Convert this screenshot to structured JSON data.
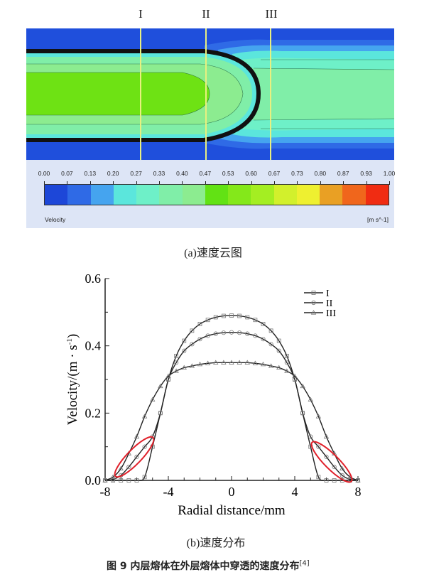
{
  "contour": {
    "section_labels": [
      "I",
      "II",
      "III"
    ],
    "colorbar": {
      "ticks": [
        "0.00",
        "0.07",
        "0.13",
        "0.20",
        "0.27",
        "0.33",
        "0.40",
        "0.47",
        "0.53",
        "0.60",
        "0.67",
        "0.73",
        "0.80",
        "0.87",
        "0.93",
        "1.00"
      ],
      "colors": [
        "#1d47d8",
        "#2f6ae6",
        "#45a4ef",
        "#5be6dc",
        "#6ef0c8",
        "#80eea8",
        "#8cec90",
        "#62e214",
        "#84e81a",
        "#a4ee22",
        "#d2f02c",
        "#eef030",
        "#e9a024",
        "#f0661c",
        "#f02c12"
      ],
      "label": "Velocity",
      "unit": "[m s^-1]"
    },
    "caption": "(a)速度云图"
  },
  "chart_data": {
    "type": "line",
    "xlabel": "Radial distance/mm",
    "ylabel": "Velocity/(m · s",
    "ylabel_sup": "-1",
    "ylabel_close": ")",
    "xlim": [
      -8,
      8
    ],
    "ylim": [
      0,
      0.6
    ],
    "xticks": [
      "-8",
      "-4",
      "0",
      "4",
      "8"
    ],
    "yticks": [
      "0.0",
      "0.2",
      "0.4",
      "0.6"
    ],
    "grid": false,
    "legend_position": "top-right",
    "x": [
      -8,
      -7.5,
      -7,
      -6.5,
      -6,
      -5.5,
      -5,
      -4.5,
      -4,
      -3.5,
      -3,
      -2.5,
      -2,
      -1.5,
      -1,
      -0.5,
      0,
      0.5,
      1,
      1.5,
      2,
      2.5,
      3,
      3.5,
      4,
      4.5,
      5,
      5.5,
      6,
      6.5,
      7,
      7.5,
      8
    ],
    "series": [
      {
        "name": "I",
        "marker": "square",
        "values": [
          0,
          0,
          0,
          0,
          0,
          0.01,
          0.1,
          0.2,
          0.3,
          0.37,
          0.415,
          0.445,
          0.465,
          0.477,
          0.485,
          0.489,
          0.49,
          0.489,
          0.485,
          0.477,
          0.465,
          0.445,
          0.415,
          0.37,
          0.3,
          0.2,
          0.1,
          0.01,
          0,
          0,
          0,
          0,
          0
        ]
      },
      {
        "name": "II",
        "marker": "circle",
        "values": [
          0,
          0.003,
          0.015,
          0.04,
          0.07,
          0.1,
          0.13,
          0.2,
          0.3,
          0.35,
          0.385,
          0.405,
          0.42,
          0.43,
          0.436,
          0.439,
          0.44,
          0.439,
          0.436,
          0.43,
          0.42,
          0.405,
          0.385,
          0.35,
          0.3,
          0.2,
          0.13,
          0.1,
          0.07,
          0.04,
          0.015,
          0.003,
          0
        ]
      },
      {
        "name": "III",
        "marker": "triangle",
        "values": [
          0,
          0.01,
          0.035,
          0.08,
          0.13,
          0.19,
          0.24,
          0.28,
          0.31,
          0.325,
          0.335,
          0.34,
          0.345,
          0.348,
          0.35,
          0.35,
          0.35,
          0.35,
          0.35,
          0.348,
          0.345,
          0.34,
          0.335,
          0.325,
          0.31,
          0.28,
          0.24,
          0.19,
          0.13,
          0.08,
          0.035,
          0.01,
          0
        ]
      }
    ],
    "annotation_color": "#e0202a",
    "caption": "(b)速度分布"
  },
  "figure_caption": {
    "text": "图 9  内层熔体在外层熔体中穿透的速度分布",
    "ref": "[4]"
  }
}
